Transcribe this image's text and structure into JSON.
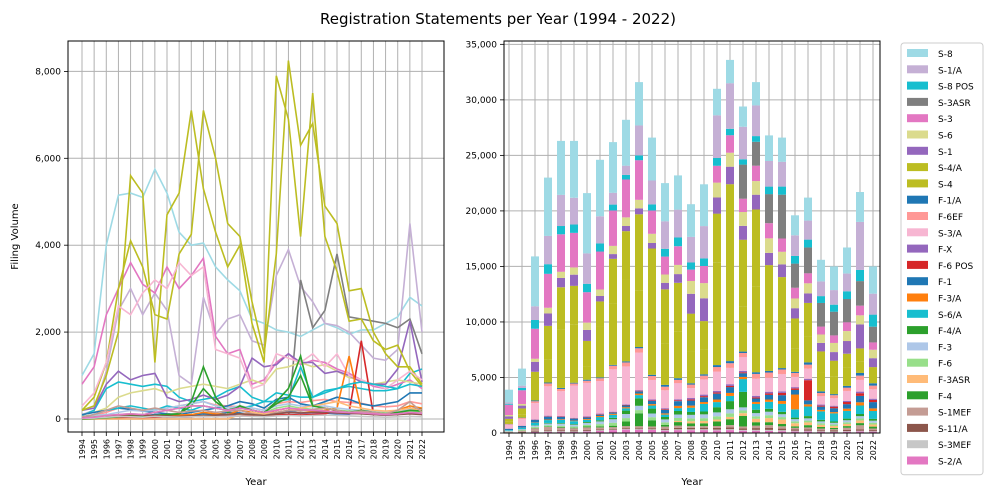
{
  "figure": {
    "title": "Registration Statements per Year (1994 - 2022)"
  },
  "chart_data": [
    {
      "type": "line",
      "xlabel": "Year",
      "ylabel": "Filing Volume",
      "ylim": [
        -300,
        8700
      ],
      "yticks": [
        0,
        2000,
        4000,
        6000,
        8000
      ],
      "ytick_labels": [
        "0",
        "2,000",
        "4,000",
        "6,000",
        "8,000"
      ],
      "grid": true,
      "x": [
        "1994",
        "1995",
        "1996",
        "1997",
        "1998",
        "1999",
        "2000",
        "2001",
        "2002",
        "2003",
        "2004",
        "2005",
        "2006",
        "2007",
        "2008",
        "2009",
        "2010",
        "2011",
        "2012",
        "2013",
        "2014",
        "2015",
        "2016",
        "2017",
        "2018",
        "2019",
        "2020",
        "2021",
        "2022"
      ],
      "series": [
        {
          "name": "S-8",
          "color": "#9edae5",
          "values": [
            1000,
            1500,
            4000,
            5150,
            5200,
            5100,
            5750,
            5200,
            4300,
            4000,
            4050,
            3500,
            3200,
            2950,
            2300,
            2200,
            2050,
            2000,
            1900,
            2050,
            2200,
            2100,
            1950,
            2050,
            2050,
            2200,
            2350,
            2800,
            2600
          ]
        },
        {
          "name": "S-1/A",
          "color": "#c5b0d5",
          "values": [
            100,
            200,
            1100,
            2500,
            3000,
            2400,
            2900,
            2500,
            1000,
            800,
            2800,
            1950,
            2300,
            2400,
            1800,
            1700,
            3300,
            3900,
            3050,
            2700,
            2200,
            2150,
            2000,
            1700,
            1400,
            1350,
            1600,
            4500,
            2000
          ]
        },
        {
          "name": "S-8 POS",
          "color": "#17becf",
          "values": [
            80,
            200,
            700,
            850,
            800,
            750,
            800,
            750,
            500,
            400,
            450,
            500,
            650,
            750,
            500,
            400,
            600,
            550,
            500,
            500,
            650,
            700,
            750,
            700,
            650,
            650,
            700,
            1050,
            1150
          ]
        },
        {
          "name": "S-3ASR",
          "color": "#7f7f7f",
          "values": [
            0,
            0,
            0,
            0,
            0,
            0,
            0,
            0,
            0,
            0,
            0,
            0,
            0,
            0,
            0,
            0,
            0,
            0,
            3200,
            2100,
            2500,
            3800,
            2350,
            2300,
            2250,
            2200,
            2100,
            2300,
            1500
          ]
        },
        {
          "name": "S-3",
          "color": "#e377c2",
          "values": [
            800,
            1200,
            2400,
            3000,
            3600,
            3100,
            2900,
            3500,
            3000,
            3300,
            3700,
            1900,
            1500,
            1600,
            800,
            900,
            1300,
            1500,
            1250,
            1350,
            1300,
            1150,
            1050,
            900,
            750,
            700,
            800,
            900,
            700
          ]
        },
        {
          "name": "S-6",
          "color": "#dbdb8d",
          "values": [
            100,
            150,
            250,
            500,
            600,
            650,
            700,
            600,
            700,
            750,
            800,
            750,
            700,
            800,
            900,
            800,
            1150,
            1200,
            1300,
            1200,
            1250,
            1100,
            950,
            900,
            800,
            850,
            900,
            850,
            800
          ]
        },
        {
          "name": "S-1",
          "color": "#9467bd",
          "values": [
            200,
            250,
            800,
            1100,
            900,
            1000,
            1050,
            500,
            400,
            450,
            550,
            450,
            550,
            750,
            1400,
            1200,
            1250,
            1500,
            1300,
            1300,
            1050,
            1100,
            1000,
            850,
            800,
            800,
            1150,
            2250,
            850
          ]
        },
        {
          "name": "S-4/A",
          "color": "#bcbd22",
          "values": [
            200,
            500,
            1300,
            3000,
            4100,
            3500,
            2400,
            2300,
            3800,
            4250,
            7100,
            6000,
            4500,
            4200,
            2700,
            1500,
            3800,
            8250,
            6300,
            6800,
            4900,
            4500,
            2950,
            3000,
            2000,
            1500,
            1200,
            1200,
            800
          ]
        },
        {
          "name": "S-4",
          "color": "#bcbd22",
          "values": [
            200,
            300,
            1000,
            2000,
            5600,
            5200,
            1300,
            4700,
            5200,
            7100,
            5300,
            4300,
            3500,
            4000,
            2200,
            1300,
            7900,
            6900,
            4200,
            7500,
            4200,
            3400,
            2250,
            2300,
            1800,
            1600,
            1700,
            1100,
            750
          ]
        },
        {
          "name": "F-1/A",
          "color": "#1f77b4",
          "values": [
            20,
            30,
            60,
            80,
            90,
            70,
            100,
            80,
            60,
            90,
            120,
            100,
            150,
            140,
            90,
            70,
            150,
            180,
            130,
            150,
            140,
            120,
            110,
            200,
            150,
            100,
            160,
            250,
            220
          ]
        },
        {
          "name": "F-6EF",
          "color": "#ff9896",
          "values": [
            50,
            80,
            150,
            250,
            220,
            180,
            200,
            250,
            300,
            350,
            400,
            320,
            300,
            280,
            250,
            200,
            350,
            400,
            380,
            420,
            450,
            400,
            380,
            360,
            300,
            280,
            300,
            400,
            350
          ]
        },
        {
          "name": "S-3/A",
          "color": "#f7b6d2",
          "values": [
            300,
            600,
            1300,
            2600,
            2400,
            2900,
            3200,
            3000,
            3600,
            3300,
            3500,
            1600,
            1500,
            1400,
            700,
            800,
            1500,
            1400,
            1300,
            1500,
            1200,
            1500,
            1000,
            900,
            800,
            700,
            900,
            1100,
            900
          ]
        },
        {
          "name": "F-X",
          "color": "#9467bd",
          "values": [
            10,
            20,
            40,
            60,
            50,
            40,
            60,
            50,
            40,
            50,
            60,
            70,
            80,
            90,
            100,
            80,
            120,
            150,
            130,
            140,
            150,
            130,
            120,
            130,
            100,
            90,
            100,
            150,
            120
          ]
        },
        {
          "name": "F-6 POS",
          "color": "#d62728",
          "values": [
            0,
            10,
            20,
            30,
            40,
            30,
            40,
            50,
            40,
            50,
            60,
            50,
            60,
            70,
            80,
            60,
            90,
            100,
            90,
            100,
            120,
            200,
            150,
            1800,
            100,
            150,
            200,
            250,
            200
          ]
        },
        {
          "name": "F-1",
          "color": "#1f77b4",
          "values": [
            100,
            150,
            200,
            250,
            220,
            180,
            150,
            120,
            100,
            150,
            200,
            250,
            300,
            400,
            350,
            250,
            450,
            500,
            350,
            300,
            400,
            500,
            450,
            350,
            300,
            350,
            400,
            600,
            600
          ]
        },
        {
          "name": "F-3/A",
          "color": "#ff7f0e",
          "values": [
            0,
            10,
            20,
            50,
            60,
            50,
            80,
            100,
            90,
            100,
            150,
            120,
            100,
            200,
            150,
            100,
            200,
            250,
            200,
            180,
            200,
            250,
            1450,
            200,
            150,
            120,
            200,
            300,
            250
          ]
        },
        {
          "name": "S-6/A",
          "color": "#17becf",
          "values": [
            50,
            100,
            200,
            250,
            300,
            250,
            200,
            300,
            250,
            200,
            300,
            250,
            200,
            250,
            300,
            400,
            400,
            450,
            1200,
            500,
            600,
            700,
            800,
            850,
            800,
            750,
            700,
            800,
            750
          ]
        },
        {
          "name": "F-4/A",
          "color": "#2ca02c",
          "values": [
            0,
            10,
            30,
            50,
            60,
            50,
            80,
            100,
            120,
            300,
            700,
            400,
            200,
            300,
            200,
            150,
            400,
            700,
            1450,
            300,
            250,
            200,
            150,
            200,
            150,
            120,
            150,
            200,
            180
          ]
        },
        {
          "name": "F-3",
          "color": "#aec7e8",
          "values": [
            50,
            80,
            100,
            150,
            200,
            180,
            200,
            250,
            300,
            350,
            400,
            300,
            250,
            300,
            250,
            200,
            300,
            350,
            300,
            280,
            300,
            250,
            220,
            200,
            180,
            160,
            180,
            220,
            200
          ]
        },
        {
          "name": "F-6",
          "color": "#98df8a",
          "values": [
            30,
            50,
            80,
            100,
            120,
            100,
            150,
            200,
            250,
            300,
            300,
            250,
            200,
            250,
            200,
            150,
            250,
            300,
            250,
            220,
            250,
            200,
            180,
            160,
            150,
            140,
            150,
            180,
            160
          ]
        },
        {
          "name": "F-3ASR",
          "color": "#ffbb78",
          "values": [
            0,
            0,
            0,
            0,
            0,
            0,
            0,
            0,
            0,
            0,
            0,
            0,
            0,
            100,
            150,
            120,
            150,
            200,
            250,
            300,
            350,
            400,
            300,
            250,
            200,
            180,
            200,
            250,
            200
          ]
        },
        {
          "name": "F-4",
          "color": "#2ca02c",
          "values": [
            0,
            10,
            30,
            50,
            60,
            50,
            80,
            100,
            120,
            400,
            1200,
            500,
            150,
            300,
            200,
            150,
            350,
            500,
            1000,
            300,
            250,
            200,
            150,
            200,
            150,
            120,
            150,
            200,
            180
          ]
        },
        {
          "name": "S-1MEF",
          "color": "#c49c94",
          "values": [
            50,
            100,
            200,
            300,
            250,
            200,
            250,
            200,
            150,
            180,
            200,
            150,
            180,
            200,
            120,
            80,
            150,
            200,
            180,
            220,
            250,
            200,
            150,
            180,
            150,
            120,
            200,
            400,
            150
          ]
        },
        {
          "name": "S-11/A",
          "color": "#8c564b",
          "values": [
            20,
            40,
            60,
            80,
            100,
            90,
            80,
            70,
            60,
            70,
            80,
            90,
            100,
            120,
            100,
            80,
            120,
            150,
            140,
            150,
            160,
            140,
            130,
            120,
            100,
            90,
            100,
            120,
            100
          ]
        },
        {
          "name": "S-3MEF",
          "color": "#c7c7c7",
          "values": [
            10,
            20,
            40,
            60,
            50,
            40,
            60,
            50,
            40,
            50,
            60,
            50,
            60,
            70,
            60,
            50,
            70,
            80,
            70,
            80,
            90,
            80,
            70,
            60,
            50,
            40,
            50,
            60,
            50
          ]
        },
        {
          "name": "S-2/A",
          "color": "#e377c2",
          "values": [
            20,
            40,
            80,
            100,
            120,
            100,
            150,
            200,
            250,
            300,
            300,
            250,
            200,
            250,
            200,
            150,
            200,
            250,
            220,
            200,
            180,
            160,
            150,
            140,
            120,
            100,
            120,
            150,
            130
          ]
        }
      ]
    },
    {
      "type": "bar",
      "stacked": true,
      "xlabel": "Year",
      "ylabel": "",
      "ylim": [
        0,
        35300
      ],
      "yticks": [
        0,
        5000,
        10000,
        15000,
        20000,
        25000,
        30000,
        35000
      ],
      "ytick_labels": [
        "0",
        "5,000",
        "10,000",
        "15,000",
        "20,000",
        "25,000",
        "30,000",
        "35,000"
      ],
      "grid": true,
      "legend_position": "outside-right",
      "categories": [
        "1994",
        "1995",
        "1996",
        "1997",
        "1998",
        "1999",
        "2000",
        "2001",
        "2002",
        "2003",
        "2004",
        "2005",
        "2006",
        "2007",
        "2008",
        "2009",
        "2010",
        "2011",
        "2012",
        "2013",
        "2014",
        "2015",
        "2016",
        "2017",
        "2018",
        "2019",
        "2020",
        "2021",
        "2022"
      ],
      "totals": [
        3900,
        5800,
        15900,
        23000,
        26300,
        26300,
        21600,
        24600,
        26200,
        28200,
        31600,
        26600,
        22500,
        23200,
        20600,
        22400,
        31000,
        33600,
        29400,
        31600,
        26800,
        26600,
        19600,
        21200,
        15600,
        15000,
        16700,
        21700,
        15000
      ]
    }
  ]
}
